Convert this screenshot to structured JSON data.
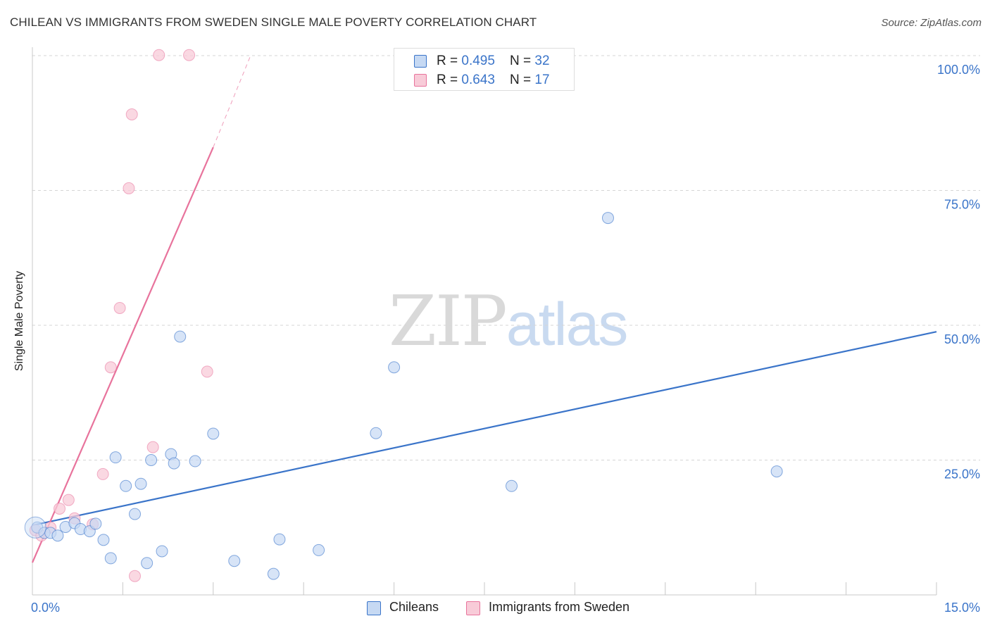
{
  "title": "CHILEAN VS IMMIGRANTS FROM SWEDEN SINGLE MALE POVERTY CORRELATION CHART",
  "source": "Source: ZipAtlas.com",
  "watermark": {
    "zip": "ZIP",
    "atlas": "atlas"
  },
  "legend": {
    "rows": [
      {
        "r_label": "R = ",
        "r_value": "0.495",
        "n_label": "N = ",
        "n_value": "32"
      },
      {
        "r_label": "R = ",
        "r_value": "0.643",
        "n_label": "N = ",
        "n_value": "17"
      }
    ]
  },
  "bottom_legend": {
    "series1": "Chileans",
    "series2": "Immigrants from Sweden"
  },
  "chart_data": {
    "type": "scatter",
    "title": "CHILEAN VS IMMIGRANTS FROM SWEDEN SINGLE MALE POVERTY CORRELATION CHART",
    "xlabel": "",
    "ylabel": "Single Male Poverty",
    "xlim": [
      0,
      15
    ],
    "ylim": [
      0,
      100
    ],
    "x_tick_labels": [
      "0.0%",
      "15.0%"
    ],
    "y_ticks": [
      25,
      50,
      75,
      100
    ],
    "y_tick_labels": [
      "25.0%",
      "50.0%",
      "75.0%",
      "100.0%"
    ],
    "colors": {
      "series1": "#3a74c9",
      "series2": "#e8739c",
      "fill1": "#c6d9f3",
      "fill2": "#f8cbd8"
    },
    "series": [
      {
        "name": "Chileans",
        "R": 0.495,
        "N": 32,
        "trend": {
          "x": [
            0,
            15
          ],
          "y": [
            12.9,
            48.8
          ]
        },
        "points": [
          {
            "x": 0.08,
            "y": 12.5
          },
          {
            "x": 0.2,
            "y": 11.5
          },
          {
            "x": 0.3,
            "y": 11.5
          },
          {
            "x": 0.42,
            "y": 11.0
          },
          {
            "x": 0.55,
            "y": 12.6
          },
          {
            "x": 0.7,
            "y": 13.3
          },
          {
            "x": 0.8,
            "y": 12.2
          },
          {
            "x": 0.95,
            "y": 11.8
          },
          {
            "x": 1.05,
            "y": 13.2
          },
          {
            "x": 1.18,
            "y": 10.2
          },
          {
            "x": 1.3,
            "y": 6.8
          },
          {
            "x": 1.38,
            "y": 25.5
          },
          {
            "x": 1.55,
            "y": 20.2
          },
          {
            "x": 1.7,
            "y": 15.0
          },
          {
            "x": 1.8,
            "y": 20.6
          },
          {
            "x": 1.9,
            "y": 5.9
          },
          {
            "x": 1.97,
            "y": 25.0
          },
          {
            "x": 2.15,
            "y": 8.1
          },
          {
            "x": 2.3,
            "y": 26.1
          },
          {
            "x": 2.35,
            "y": 24.4
          },
          {
            "x": 2.45,
            "y": 47.9
          },
          {
            "x": 2.7,
            "y": 24.8
          },
          {
            "x": 3.0,
            "y": 29.9
          },
          {
            "x": 3.35,
            "y": 6.3
          },
          {
            "x": 4.0,
            "y": 3.9
          },
          {
            "x": 4.1,
            "y": 10.3
          },
          {
            "x": 4.75,
            "y": 8.3
          },
          {
            "x": 5.7,
            "y": 30.0
          },
          {
            "x": 6.0,
            "y": 42.2
          },
          {
            "x": 7.95,
            "y": 20.2
          },
          {
            "x": 9.55,
            "y": 69.9
          },
          {
            "x": 12.35,
            "y": 22.9
          }
        ]
      },
      {
        "name": "Immigrants from Sweden",
        "R": 0.643,
        "N": 17,
        "trend": {
          "x": [
            0,
            3.0
          ],
          "y": [
            6.0,
            83.0
          ]
        },
        "trend_dashed": {
          "x": [
            3.0,
            3.62
          ],
          "y": [
            83.0,
            100.0
          ]
        },
        "points": [
          {
            "x": 0.05,
            "y": 12.0
          },
          {
            "x": 0.15,
            "y": 11.0
          },
          {
            "x": 0.3,
            "y": 12.5
          },
          {
            "x": 0.45,
            "y": 16.0
          },
          {
            "x": 0.6,
            "y": 17.6
          },
          {
            "x": 0.7,
            "y": 14.2
          },
          {
            "x": 1.0,
            "y": 13.1
          },
          {
            "x": 1.17,
            "y": 22.4
          },
          {
            "x": 1.3,
            "y": 42.2
          },
          {
            "x": 1.45,
            "y": 53.2
          },
          {
            "x": 1.6,
            "y": 75.4
          },
          {
            "x": 1.65,
            "y": 89.1
          },
          {
            "x": 1.7,
            "y": 3.5
          },
          {
            "x": 2.0,
            "y": 27.4
          },
          {
            "x": 2.1,
            "y": 100.1
          },
          {
            "x": 2.6,
            "y": 100.1
          },
          {
            "x": 2.9,
            "y": 41.4
          }
        ]
      }
    ]
  }
}
